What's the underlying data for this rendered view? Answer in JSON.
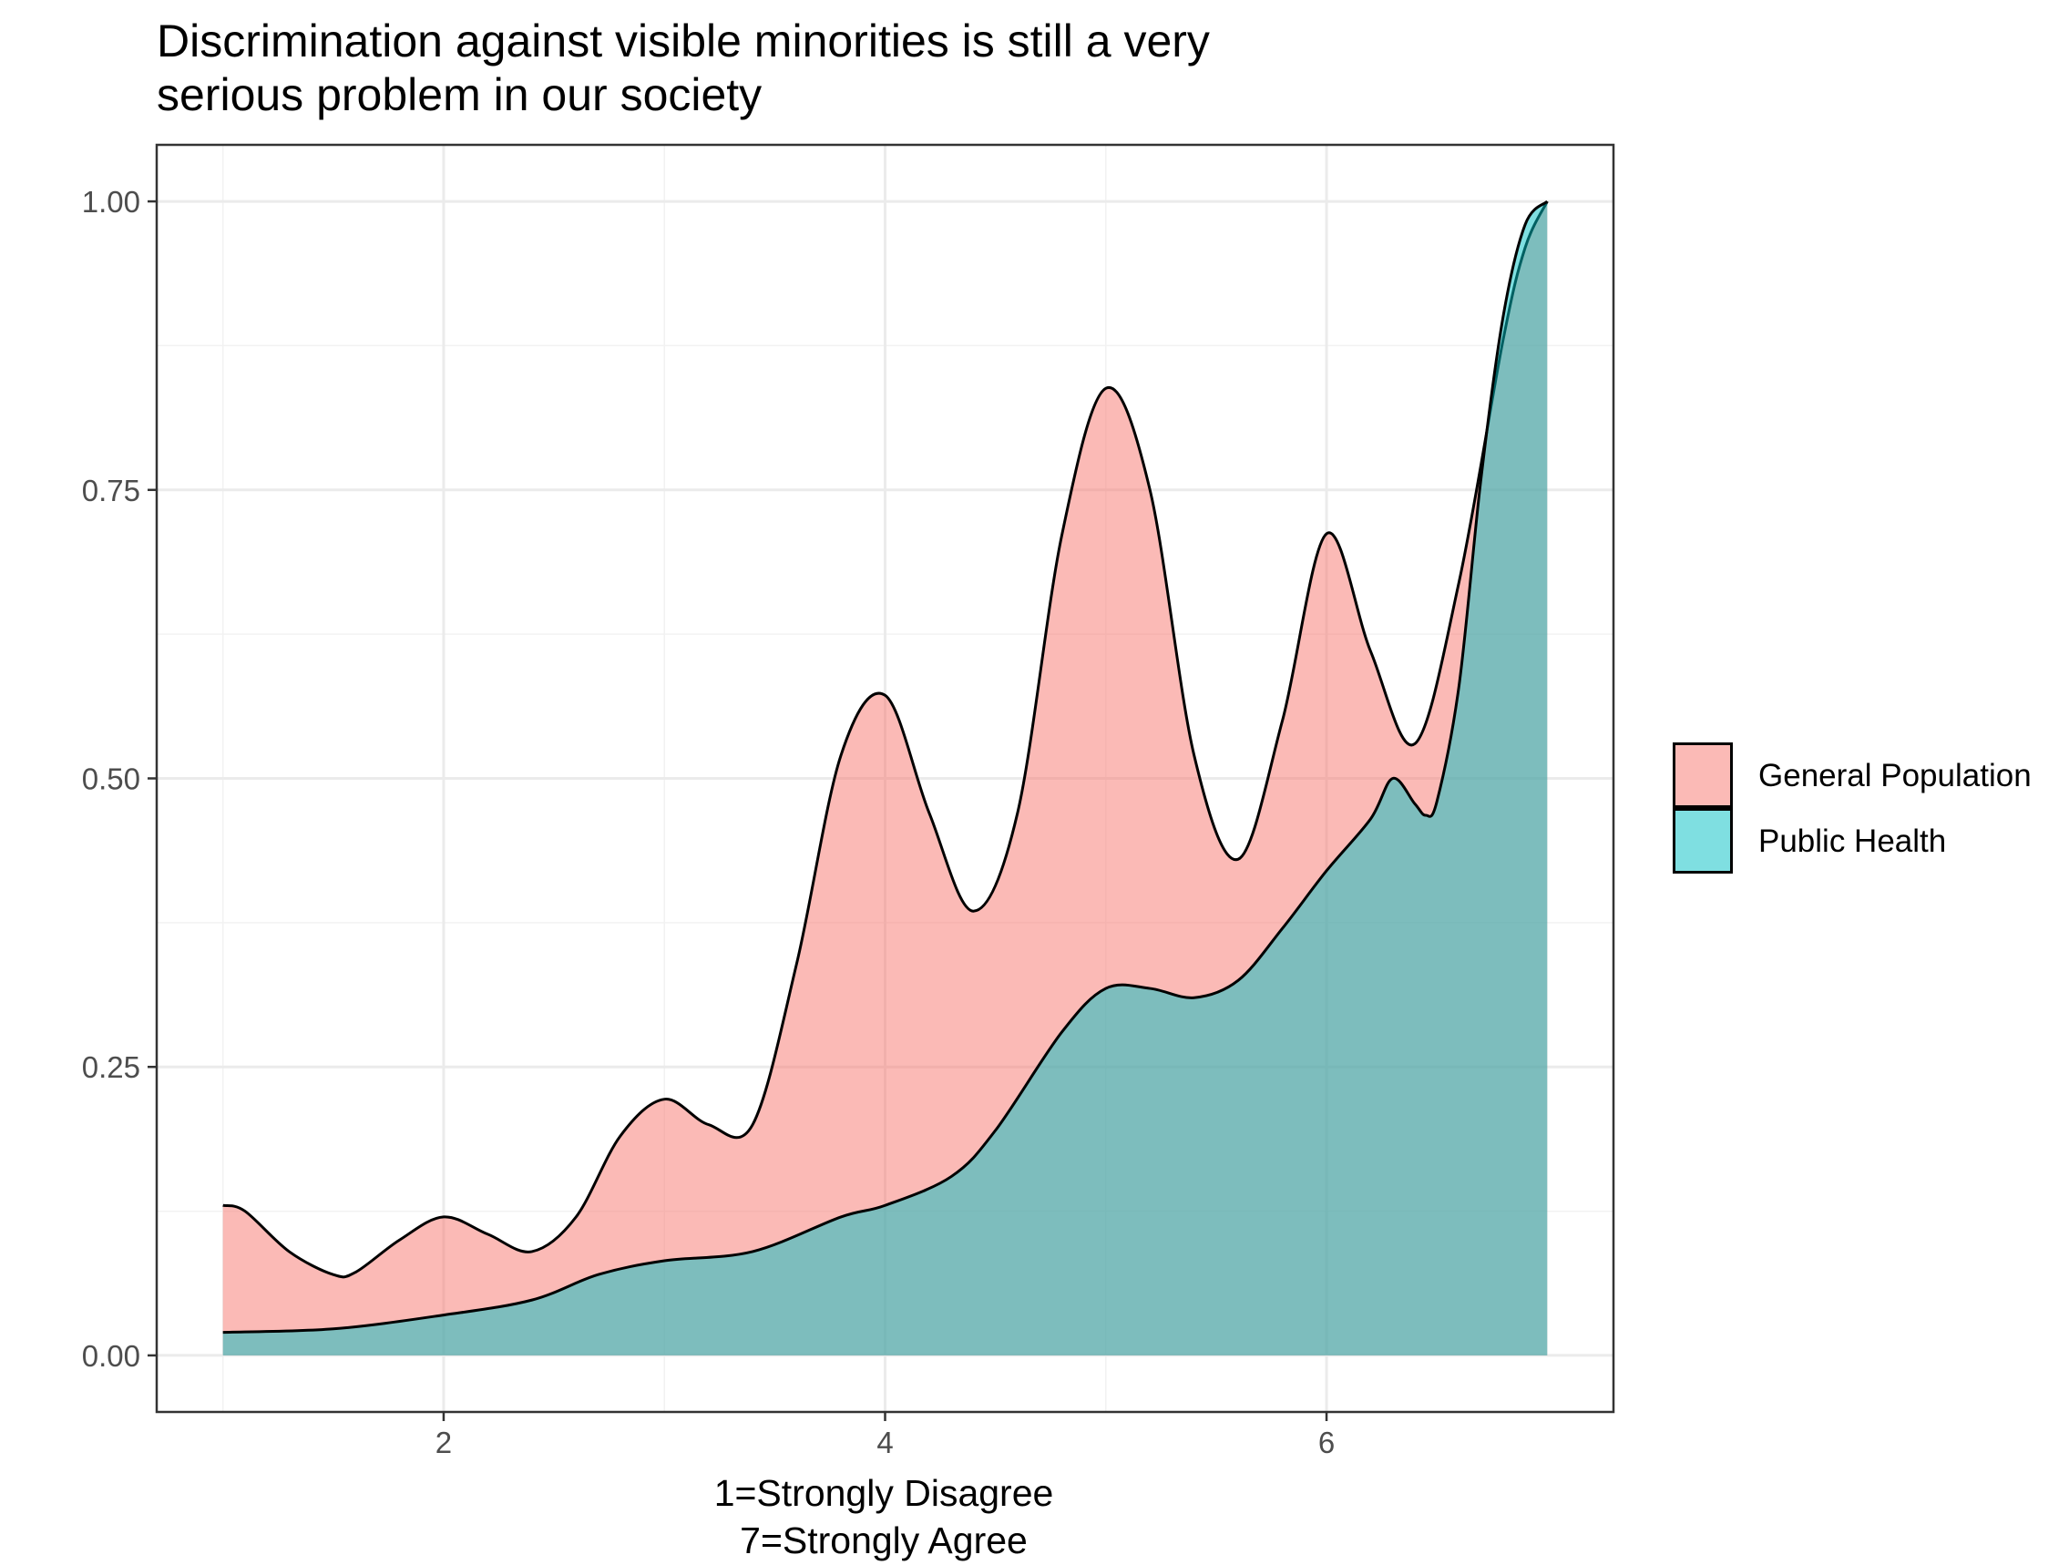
{
  "chart_data": {
    "type": "area",
    "subtype": "density",
    "title_lines": [
      "Discrimination against visible minorities is still a very",
      "serious problem in our society"
    ],
    "xlabel_lines": [
      "1=Strongly Disagree",
      "7=Strongly Agree"
    ],
    "ylabel": "",
    "xlim": [
      0.7,
      7.3
    ],
    "ylim": [
      -0.049,
      1.049
    ],
    "x_ticks": [
      2,
      4,
      6
    ],
    "x_tick_labels": [
      "2",
      "4",
      "6"
    ],
    "y_ticks": [
      0,
      0.25,
      0.5,
      0.75,
      1.0
    ],
    "y_tick_labels": [
      "0.00",
      "0.25",
      "0.50",
      "0.75",
      "1.00"
    ],
    "grid": true,
    "legend_position": "right",
    "series": [
      {
        "name": "General Population",
        "color": "#F8766D",
        "x": [
          1.0,
          1.1,
          1.3,
          1.5,
          1.6,
          1.8,
          2.0,
          2.2,
          2.4,
          2.6,
          2.8,
          3.0,
          3.2,
          3.4,
          3.6,
          3.8,
          4.0,
          4.2,
          4.4,
          4.6,
          4.8,
          5.0,
          5.2,
          5.4,
          5.6,
          5.8,
          6.0,
          6.2,
          6.4,
          6.6,
          6.8,
          6.9,
          7.0
        ],
        "y": [
          0.13,
          0.125,
          0.09,
          0.07,
          0.072,
          0.1,
          0.12,
          0.105,
          0.09,
          0.12,
          0.19,
          0.222,
          0.2,
          0.2,
          0.34,
          0.52,
          0.572,
          0.47,
          0.385,
          0.47,
          0.71,
          0.838,
          0.75,
          0.52,
          0.43,
          0.55,
          0.712,
          0.61,
          0.53,
          0.67,
          0.88,
          0.96,
          1.0
        ]
      },
      {
        "name": "Public Health",
        "color": "#00BFC4",
        "x": [
          1.0,
          1.5,
          2.0,
          2.4,
          2.7,
          3.0,
          3.4,
          3.8,
          4.0,
          4.3,
          4.5,
          4.8,
          5.0,
          5.2,
          5.4,
          5.6,
          5.8,
          6.0,
          6.2,
          6.3,
          6.4,
          6.45,
          6.5,
          6.6,
          6.7,
          6.8,
          6.9,
          7.0
        ],
        "y": [
          0.02,
          0.023,
          0.035,
          0.048,
          0.07,
          0.082,
          0.09,
          0.12,
          0.13,
          0.155,
          0.195,
          0.28,
          0.318,
          0.318,
          0.31,
          0.325,
          0.37,
          0.42,
          0.465,
          0.5,
          0.478,
          0.468,
          0.48,
          0.58,
          0.76,
          0.9,
          0.98,
          1.0
        ]
      }
    ]
  }
}
